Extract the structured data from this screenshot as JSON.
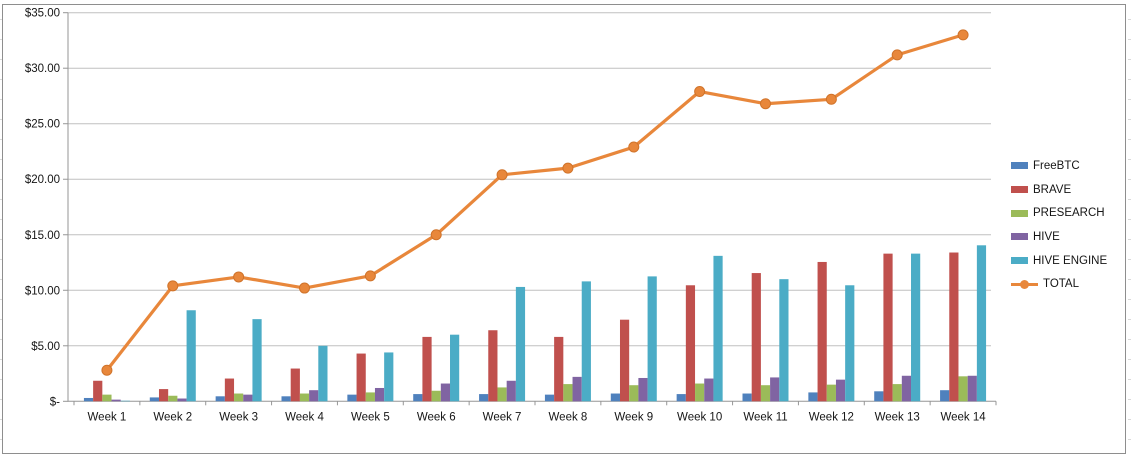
{
  "window": {
    "background_color": "#FFFFFF",
    "chart_border_color": "#8E8E8E"
  },
  "chart_data": {
    "type": "bar",
    "subtype": "grouped-bars-with-line-overlay",
    "title": "",
    "xlabel": "",
    "ylabel": "",
    "categories": [
      "Week 1",
      "Week 2",
      "Week 3",
      "Week 4",
      "Week 5",
      "Week 6",
      "Week 7",
      "Week 8",
      "Week 9",
      "Week 10",
      "Week 11",
      "Week 12",
      "Week 13",
      "Week 14"
    ],
    "series": [
      {
        "name": "FreeBTC",
        "type": "bar",
        "color": "#4F81BD",
        "values": [
          0.3,
          0.35,
          0.45,
          0.45,
          0.6,
          0.65,
          0.65,
          0.6,
          0.7,
          0.65,
          0.7,
          0.8,
          0.9,
          1.0
        ]
      },
      {
        "name": "BRAVE",
        "type": "bar",
        "color": "#C0504D",
        "values": [
          1.85,
          1.1,
          2.05,
          2.95,
          4.3,
          5.8,
          6.4,
          5.8,
          7.35,
          10.45,
          11.55,
          12.55,
          13.3,
          13.4
        ]
      },
      {
        "name": "PRESEARCH",
        "type": "bar",
        "color": "#9BBB59",
        "values": [
          0.6,
          0.5,
          0.7,
          0.7,
          0.8,
          0.95,
          1.25,
          1.55,
          1.45,
          1.6,
          1.45,
          1.5,
          1.55,
          2.25
        ]
      },
      {
        "name": "HIVE",
        "type": "bar",
        "color": "#8064A2",
        "values": [
          0.15,
          0.25,
          0.6,
          1.0,
          1.2,
          1.6,
          1.85,
          2.2,
          2.1,
          2.05,
          2.15,
          1.95,
          2.3,
          2.3
        ]
      },
      {
        "name": "HIVE ENGINE",
        "type": "bar",
        "color": "#4BACC6",
        "values": [
          0.05,
          8.2,
          7.4,
          5.0,
          4.4,
          6.0,
          10.3,
          10.8,
          11.25,
          13.1,
          11.0,
          10.45,
          13.3,
          14.05
        ]
      },
      {
        "name": "TOTAL",
        "type": "line",
        "color": "#E8873B",
        "values": [
          2.8,
          10.4,
          11.2,
          10.2,
          11.3,
          15.0,
          20.4,
          21.0,
          22.9,
          27.9,
          26.8,
          27.2,
          31.2,
          33.0
        ]
      }
    ],
    "y_tick_labels": [
      "$35.00",
      "$30.00",
      "$25.00",
      "$20.00",
      "$15.00",
      "$10.00",
      "$5.00",
      "$-"
    ],
    "ylim": [
      0,
      35
    ],
    "y_tick_step": 5,
    "grid": "horizontal",
    "gridline_color": "#C0C0C0",
    "axis_line_color": "#969696",
    "legend_position": "right"
  }
}
